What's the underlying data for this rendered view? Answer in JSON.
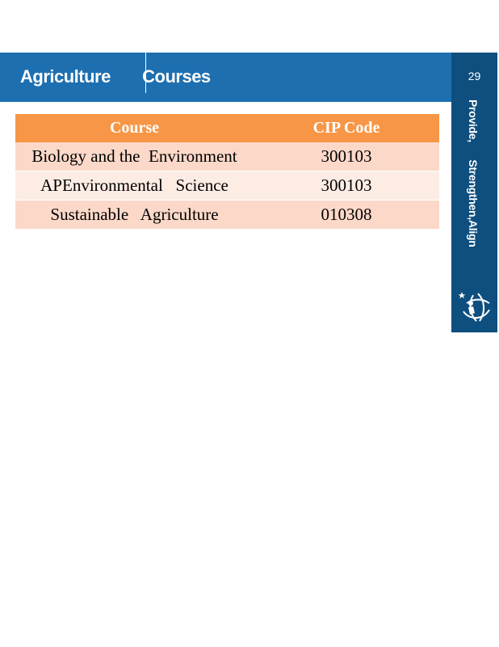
{
  "header": {
    "title": "Agriculture       Courses"
  },
  "sidebar": {
    "page_number": "29",
    "tagline": "Provide,      Strengthen,Align",
    "logo_icon": "globe-figure-logo-icon"
  },
  "table": {
    "columns": [
      "Course",
      "CIP Code"
    ],
    "rows": [
      {
        "course": "Biology and the  Environment",
        "cip": "300103"
      },
      {
        "course": "APEnvironmental   Science",
        "cip": "300103"
      },
      {
        "course": "Sustainable   Agriculture",
        "cip": "010308"
      }
    ]
  },
  "colors": {
    "header_blue": "#1d6fb0",
    "side_navy": "#0f4f7f",
    "table_header_orange": "#f79646",
    "row_peach": "#fbd8c8",
    "row_light": "#fdece4"
  }
}
